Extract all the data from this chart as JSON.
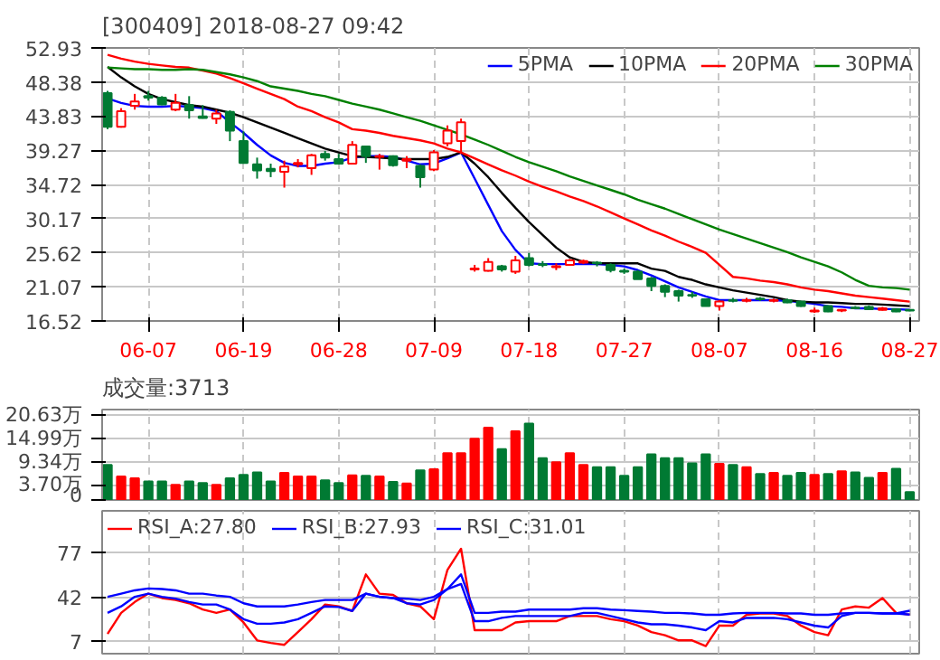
{
  "chart_data": [
    {
      "type": "candlestick",
      "title": "[300409] 2018-08-27 09:42",
      "categories": [
        null,
        null,
        null,
        "06-07",
        null,
        null,
        null,
        null,
        null,
        null,
        "06-19",
        null,
        null,
        null,
        null,
        null,
        null,
        "06-28",
        null,
        null,
        null,
        null,
        null,
        null,
        "07-09",
        null,
        null,
        null,
        null,
        null,
        null,
        "07-18",
        null,
        null,
        null,
        null,
        null,
        null,
        "07-27",
        null,
        null,
        null,
        null,
        null,
        null,
        "08-07",
        null,
        null,
        null,
        null,
        null,
        null,
        "08-16",
        null,
        null,
        null,
        null,
        null,
        null,
        "08-27"
      ],
      "ohlc": [
        [
          46.9,
          47.2,
          42.1,
          42.4
        ],
        [
          42.4,
          44.9,
          42.3,
          44.5
        ],
        [
          45.2,
          46.8,
          44.7,
          45.8
        ],
        [
          46.5,
          47.2,
          45.9,
          46.3
        ],
        [
          46.3,
          46.5,
          45.3,
          45.4
        ],
        [
          44.7,
          46.8,
          44.5,
          45.6
        ],
        [
          45.3,
          46.5,
          43.5,
          44.6
        ],
        [
          43.8,
          45.3,
          43.5,
          43.6
        ],
        [
          43.5,
          44.7,
          42.8,
          44.2
        ],
        [
          44.4,
          44.6,
          40.5,
          41.9
        ],
        [
          40.5,
          41.8,
          37.6,
          37.6
        ],
        [
          37.4,
          38.3,
          35.5,
          36.6
        ],
        [
          36.8,
          37.5,
          35.7,
          36.5
        ],
        [
          36.4,
          37.9,
          34.3,
          37.1
        ],
        [
          37.4,
          38.1,
          37.0,
          37.6
        ],
        [
          36.9,
          38.8,
          36.0,
          38.6
        ],
        [
          38.8,
          39.2,
          37.9,
          38.3
        ],
        [
          38.1,
          38.8,
          37.5,
          37.5
        ],
        [
          37.5,
          40.5,
          37.4,
          40.0
        ],
        [
          39.8,
          39.9,
          37.6,
          38.5
        ],
        [
          38.4,
          38.8,
          36.7,
          38.5
        ],
        [
          38.5,
          38.6,
          37.1,
          37.3
        ],
        [
          37.9,
          38.5,
          36.9,
          38.1
        ],
        [
          37.2,
          37.4,
          34.3,
          35.7
        ],
        [
          36.7,
          39.3,
          36.5,
          39.0
        ],
        [
          40.2,
          42.6,
          39.8,
          41.9
        ],
        [
          40.5,
          43.5,
          38.8,
          43.0
        ],
        [
          23.4,
          24.0,
          23.1,
          23.5
        ],
        [
          23.2,
          24.9,
          23.1,
          24.4
        ],
        [
          23.8,
          24.0,
          23.1,
          23.4
        ],
        [
          23.1,
          25.2,
          22.8,
          24.6
        ],
        [
          24.9,
          25.6,
          23.8,
          24.0
        ],
        [
          24.1,
          24.5,
          23.7,
          24.0
        ],
        [
          23.7,
          24.2,
          23.3,
          23.8
        ],
        [
          24.0,
          24.8,
          23.9,
          24.6
        ],
        [
          24.3,
          24.7,
          24.1,
          24.5
        ],
        [
          24.3,
          24.5,
          23.8,
          24.2
        ],
        [
          24.0,
          24.2,
          23.0,
          23.3
        ],
        [
          23.2,
          23.5,
          22.8,
          23.1
        ],
        [
          23.1,
          23.3,
          22.1,
          22.1
        ],
        [
          22.2,
          22.4,
          20.5,
          21.2
        ],
        [
          21.2,
          21.4,
          19.7,
          20.4
        ],
        [
          20.5,
          20.7,
          19.1,
          19.9
        ],
        [
          20.0,
          20.4,
          19.6,
          19.9
        ],
        [
          19.4,
          19.5,
          18.5,
          18.5
        ],
        [
          18.5,
          19.3,
          17.9,
          19.1
        ],
        [
          19.3,
          19.6,
          19.0,
          19.2
        ],
        [
          19.2,
          19.6,
          19.0,
          19.3
        ],
        [
          19.5,
          19.7,
          19.2,
          19.4
        ],
        [
          19.2,
          19.5,
          19.0,
          19.3
        ],
        [
          19.3,
          19.5,
          18.9,
          19.0
        ],
        [
          19.1,
          19.2,
          18.4,
          18.5
        ],
        [
          17.8,
          18.3,
          17.6,
          17.9
        ],
        [
          18.5,
          18.6,
          17.7,
          17.8
        ],
        [
          17.9,
          18.1,
          17.7,
          18.0
        ],
        [
          18.3,
          18.5,
          18.1,
          18.2
        ],
        [
          18.4,
          18.6,
          18.0,
          18.1
        ],
        [
          18.0,
          18.4,
          17.9,
          18.2
        ],
        [
          18.1,
          18.2,
          17.7,
          17.8
        ],
        [
          18.0,
          18.1,
          17.8,
          17.9
        ]
      ],
      "colors": [
        "#007a33",
        "#ff0000",
        "#ff0000",
        "#007a33",
        "#007a33",
        "#ff0000",
        "#007a33",
        "#007a33",
        "#ff0000",
        "#007a33",
        "#007a33",
        "#007a33",
        "#007a33",
        "#ff0000",
        "#ff0000",
        "#ff0000",
        "#007a33",
        "#007a33",
        "#ff0000",
        "#007a33",
        "#ff0000",
        "#007a33",
        "#ff0000",
        "#007a33",
        "#ff0000",
        "#ff0000",
        "#ff0000",
        "#ff0000",
        "#ff0000",
        "#007a33",
        "#ff0000",
        "#007a33",
        "#007a33",
        "#ff0000",
        "#ff0000",
        "#ff0000",
        "#007a33",
        "#007a33",
        "#007a33",
        "#007a33",
        "#007a33",
        "#007a33",
        "#007a33",
        "#007a33",
        "#007a33",
        "#ff0000",
        "#007a33",
        "#ff0000",
        "#007a33",
        "#ff0000",
        "#007a33",
        "#007a33",
        "#ff0000",
        "#007a33",
        "#ff0000",
        "#007a33",
        "#007a33",
        "#ff0000",
        "#007a33",
        "#007a33"
      ],
      "series": [
        {
          "type": "line",
          "name": "5PMA",
          "color": "#0000ff",
          "values": [
            46.2,
            45.6,
            45.2,
            45.1,
            45.1,
            45.2,
            45.1,
            44.9,
            44.5,
            43.0,
            41.6,
            40.0,
            38.6,
            37.6,
            37.2,
            37.2,
            37.5,
            37.7,
            38.3,
            38.5,
            38.5,
            38.4,
            37.9,
            37.4,
            37.5,
            38.2,
            39.0,
            35.5,
            32.0,
            28.5,
            26.0,
            24.2,
            24.1,
            24.1,
            24.1,
            24.1,
            24.1,
            24.0,
            23.8,
            23.3,
            22.6,
            21.8,
            21.0,
            20.4,
            19.8,
            19.3,
            19.3,
            19.3,
            19.3,
            19.3,
            19.2,
            19.0,
            18.8,
            18.5,
            18.4,
            18.2,
            18.2,
            18.1,
            18.1,
            18.0
          ]
        },
        {
          "type": "line",
          "name": "10PMA",
          "color": "#000000",
          "values": [
            50.4,
            49.0,
            47.8,
            46.8,
            46.1,
            45.7,
            45.3,
            45.1,
            44.7,
            44.3,
            43.7,
            43.0,
            42.3,
            41.6,
            40.9,
            40.2,
            39.5,
            39.0,
            38.5,
            38.4,
            38.3,
            38.2,
            38.1,
            38.1,
            38.1,
            38.4,
            39.0,
            37.5,
            35.7,
            33.6,
            31.6,
            29.7,
            28.0,
            26.3,
            25.0,
            24.4,
            24.2,
            24.2,
            24.2,
            24.2,
            23.5,
            23.2,
            22.4,
            22.0,
            21.4,
            21.0,
            20.6,
            20.3,
            20.0,
            19.7,
            19.3,
            19.1,
            19.0,
            19.0,
            18.9,
            18.8,
            18.8,
            18.7,
            18.6,
            18.5
          ]
        },
        {
          "type": "line",
          "name": "20PMA",
          "color": "#ff0000",
          "values": [
            52.0,
            51.5,
            51.1,
            50.8,
            50.6,
            50.4,
            50.3,
            49.9,
            49.5,
            48.9,
            48.2,
            47.5,
            46.8,
            46.1,
            45.1,
            44.5,
            43.7,
            43.0,
            42.1,
            41.9,
            41.6,
            41.2,
            40.9,
            40.6,
            40.2,
            39.5,
            39.0,
            38.2,
            37.4,
            36.6,
            35.9,
            35.1,
            34.4,
            33.8,
            33.1,
            32.5,
            31.8,
            31.0,
            30.2,
            29.4,
            28.6,
            27.9,
            27.1,
            26.4,
            25.6,
            24.0,
            22.4,
            22.2,
            21.9,
            21.7,
            21.4,
            21.0,
            20.7,
            20.5,
            20.2,
            19.9,
            19.7,
            19.5,
            19.3,
            19.1
          ]
        },
        {
          "type": "line",
          "name": "30PMA",
          "color": "#008000",
          "values": [
            50.3,
            50.2,
            50.1,
            50.1,
            50.0,
            50.0,
            50.1,
            50.0,
            49.7,
            49.4,
            49.0,
            48.5,
            47.8,
            47.5,
            47.2,
            46.8,
            46.5,
            46.0,
            45.5,
            45.1,
            44.7,
            44.2,
            43.7,
            43.2,
            42.6,
            42.0,
            41.4,
            40.7,
            40.0,
            39.2,
            38.4,
            37.7,
            37.1,
            36.5,
            35.8,
            35.2,
            34.6,
            34.0,
            33.4,
            32.7,
            32.1,
            31.5,
            30.8,
            30.1,
            29.4,
            28.7,
            28.1,
            27.5,
            26.9,
            26.3,
            25.7,
            25.0,
            24.4,
            23.8,
            23.0,
            22.0,
            21.2,
            21.0,
            20.9,
            20.7
          ]
        }
      ],
      "ylim": [
        16.52,
        52.93
      ],
      "yticks": [
        16.52,
        21.07,
        25.62,
        30.17,
        34.72,
        39.27,
        43.83,
        48.38,
        52.93
      ],
      "grid": true,
      "legend": "top right"
    },
    {
      "type": "bar",
      "title": "成交量:3713",
      "categories": [
        null,
        null,
        null,
        null,
        null,
        null,
        null,
        null,
        null,
        null,
        null,
        null,
        null,
        null,
        null,
        null,
        null,
        null,
        null,
        null,
        null,
        null,
        null,
        null,
        null,
        null,
        null,
        null,
        null,
        null,
        null,
        null,
        null,
        null,
        null,
        null,
        null,
        null,
        null,
        null,
        null,
        null,
        null,
        null,
        null,
        null,
        null,
        null,
        null,
        null,
        null,
        null,
        null,
        null,
        null,
        null,
        null,
        null,
        null,
        null
      ],
      "values": [
        8.5,
        5.7,
        5.3,
        4.5,
        4.5,
        3.7,
        4.5,
        4.1,
        3.7,
        5.3,
        6.1,
        6.7,
        4.5,
        6.6,
        5.7,
        5.7,
        4.8,
        4.1,
        6.0,
        5.9,
        5.7,
        4.4,
        4.0,
        7.2,
        7.5,
        11.4,
        11.4,
        14.9,
        17.6,
        12.4,
        16.7,
        18.6,
        10.2,
        9.2,
        11.4,
        8.5,
        8.0,
        8.0,
        5.9,
        8.0,
        11.1,
        10.2,
        10.2,
        8.9,
        11.1,
        8.8,
        8.5,
        8.0,
        6.3,
        6.6,
        5.9,
        6.6,
        6.1,
        6.3,
        7.0,
        6.7,
        5.4,
        6.6,
        7.6,
        1.9
      ],
      "colors": [
        "#007a33",
        "#ff0000",
        "#ff0000",
        "#007a33",
        "#007a33",
        "#ff0000",
        "#007a33",
        "#007a33",
        "#ff0000",
        "#007a33",
        "#007a33",
        "#007a33",
        "#007a33",
        "#ff0000",
        "#ff0000",
        "#ff0000",
        "#007a33",
        "#007a33",
        "#ff0000",
        "#007a33",
        "#ff0000",
        "#007a33",
        "#ff0000",
        "#007a33",
        "#ff0000",
        "#ff0000",
        "#ff0000",
        "#ff0000",
        "#ff0000",
        "#007a33",
        "#ff0000",
        "#007a33",
        "#007a33",
        "#ff0000",
        "#ff0000",
        "#ff0000",
        "#007a33",
        "#007a33",
        "#007a33",
        "#007a33",
        "#007a33",
        "#007a33",
        "#007a33",
        "#007a33",
        "#007a33",
        "#ff0000",
        "#007a33",
        "#ff0000",
        "#007a33",
        "#ff0000",
        "#007a33",
        "#007a33",
        "#ff0000",
        "#007a33",
        "#ff0000",
        "#007a33",
        "#007a33",
        "#ff0000",
        "#007a33",
        "#007a33"
      ],
      "ylim": [
        0,
        22
      ],
      "yticks": [
        {
          "value": 0,
          "label": "0"
        },
        {
          "value": 3.7,
          "label": "3.70万"
        },
        {
          "value": 9.34,
          "label": "9.34万"
        },
        {
          "value": 14.99,
          "label": "14.99万"
        },
        {
          "value": 20.63,
          "label": "20.63万"
        }
      ],
      "grid": true,
      "tick_labels": "y"
    },
    {
      "type": "line",
      "categories": [
        null,
        null,
        null,
        null,
        null,
        null,
        null,
        null,
        null,
        null,
        null,
        null,
        null,
        null,
        null,
        null,
        null,
        null,
        null,
        null,
        null,
        null,
        null,
        null,
        null,
        null,
        null,
        null,
        null,
        null,
        null,
        null,
        null,
        null,
        null,
        null,
        null,
        null,
        null,
        null,
        null,
        null,
        null,
        null,
        null,
        null,
        null,
        null,
        null,
        null,
        null,
        null,
        null,
        null,
        null,
        null,
        null,
        null,
        null,
        null
      ],
      "series": [
        {
          "name": "RSI_A:27.80",
          "color": "#ff0000",
          "values": [
            12.6,
            29.3,
            37.9,
            44.5,
            41.0,
            39.5,
            36.9,
            31.9,
            29.3,
            31.9,
            21.7,
            7.5,
            5.5,
            4.0,
            14.1,
            24.3,
            35.9,
            34.4,
            30.8,
            59.7,
            44.5,
            43.5,
            36.9,
            34.4,
            24.3,
            63.3,
            80.0,
            15.6,
            15.6,
            15.6,
            21.7,
            22.7,
            22.7,
            22.7,
            26.8,
            26.8,
            26.8,
            24.3,
            22.7,
            19.2,
            14.1,
            11.6,
            7.5,
            7.5,
            3.0,
            19.2,
            19.2,
            27.8,
            28.8,
            28.8,
            26.8,
            19.2,
            14.1,
            11.6,
            31.9,
            34.4,
            33.4,
            41.0,
            29.3,
            27.8
          ]
        },
        {
          "name": "RSI_B:27.93",
          "color": "#0000ff",
          "values": [
            29.3,
            34.4,
            42.0,
            44.5,
            42.0,
            40.5,
            37.9,
            35.9,
            35.9,
            31.9,
            24.3,
            20.7,
            20.7,
            21.7,
            24.3,
            29.3,
            34.4,
            33.9,
            30.8,
            44.5,
            42.0,
            41.0,
            36.9,
            35.9,
            39.5,
            48.1,
            52.1,
            22.7,
            22.7,
            25.3,
            26.8,
            26.8,
            26.8,
            26.8,
            26.8,
            29.3,
            29.3,
            26.8,
            24.3,
            21.7,
            20.2,
            20.2,
            19.2,
            17.7,
            15.6,
            22.7,
            21.7,
            25.3,
            25.3,
            25.3,
            24.3,
            21.7,
            19.2,
            17.7,
            26.8,
            29.3,
            29.3,
            28.8,
            28.8,
            27.9
          ]
        },
        {
          "name": "RSI_C:31.01",
          "color": "#0000ff",
          "values": [
            42.0,
            44.5,
            47.1,
            48.6,
            48.1,
            47.1,
            44.5,
            44.5,
            43.0,
            42.0,
            36.9,
            34.4,
            34.4,
            34.4,
            35.9,
            37.9,
            39.5,
            39.5,
            39.5,
            44.5,
            42.0,
            41.0,
            40.5,
            39.5,
            42.0,
            48.1,
            59.7,
            29.3,
            29.3,
            30.3,
            30.3,
            31.9,
            31.9,
            31.9,
            31.9,
            32.9,
            32.9,
            31.9,
            31.4,
            30.8,
            30.3,
            29.3,
            29.3,
            28.8,
            27.8,
            27.8,
            28.8,
            29.3,
            29.3,
            29.3,
            28.8,
            28.8,
            27.8,
            27.8,
            28.8,
            29.3,
            29.3,
            28.8,
            28.8,
            31.0
          ]
        }
      ],
      "ylim": [
        -3,
        110
      ],
      "yticks": [
        7,
        42,
        77
      ],
      "grid": true,
      "legend": "top left",
      "tick_labels": "y"
    }
  ]
}
